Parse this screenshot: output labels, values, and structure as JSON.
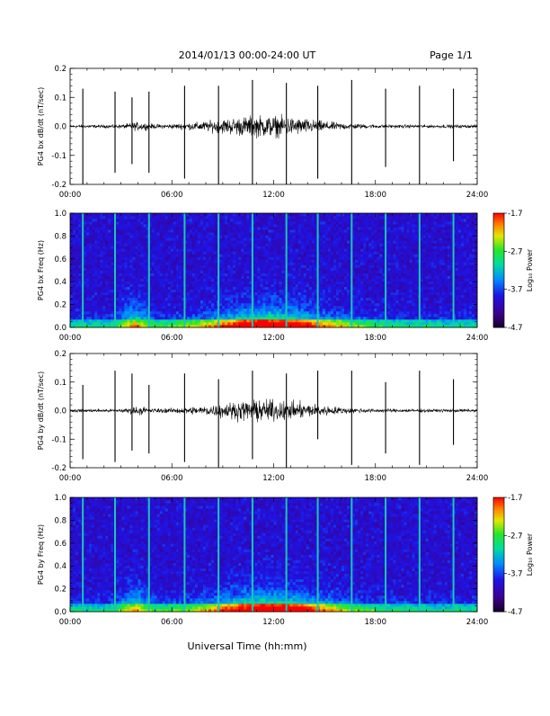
{
  "header": {
    "title": "2014/01/13  00:00-24:00 UT",
    "page": "Page 1/1"
  },
  "footer": {
    "xlabel": "Universal Time (hh:mm)"
  },
  "colorbar": {
    "ticks": [
      "-1.7",
      "-2.7",
      "-3.7",
      "-4.7"
    ],
    "tick_values": [
      -1.7,
      -2.7,
      -3.7,
      -4.7
    ],
    "label": "Log₁₀ Power",
    "range": [
      -4.7,
      -1.7
    ]
  },
  "chart_data": [
    {
      "type": "line",
      "ylabel": "PG4 bx dB/dt (nT/sec)",
      "xlim": [
        0,
        24
      ],
      "ylim": [
        -0.2,
        0.2
      ],
      "xticks": [
        "00:00",
        "06:00",
        "12:00",
        "18:00",
        "24:00"
      ],
      "yticks": [
        "0.2",
        "0.1",
        "0.0",
        "-0.1",
        "-0.2"
      ],
      "ytick_values": [
        0.2,
        0.1,
        0.0,
        -0.1,
        -0.2
      ],
      "spikes": [
        {
          "t": 0.75,
          "max": 0.13,
          "min": -0.21
        },
        {
          "t": 2.65,
          "max": 0.12,
          "min": -0.16
        },
        {
          "t": 3.65,
          "max": 0.1,
          "min": -0.13
        },
        {
          "t": 4.65,
          "max": 0.12,
          "min": -0.16
        },
        {
          "t": 6.75,
          "max": 0.14,
          "min": -0.18
        },
        {
          "t": 8.75,
          "max": 0.14,
          "min": -0.21
        },
        {
          "t": 10.75,
          "max": 0.16,
          "min": -0.21
        },
        {
          "t": 12.75,
          "max": 0.15,
          "min": -0.21
        },
        {
          "t": 14.6,
          "max": 0.14,
          "min": -0.18
        },
        {
          "t": 16.6,
          "max": 0.16,
          "min": -0.21
        },
        {
          "t": 18.6,
          "max": 0.13,
          "min": -0.14
        },
        {
          "t": 20.6,
          "max": 0.14,
          "min": -0.21
        },
        {
          "t": 22.6,
          "max": 0.13,
          "min": -0.12
        }
      ]
    },
    {
      "type": "heatmap",
      "ylabel": "PG4 bx Freq (Hz)",
      "xlim": [
        0,
        24
      ],
      "ylim": [
        0,
        1.0
      ],
      "xticks": [
        "00:00",
        "06:00",
        "12:00",
        "18:00",
        "24:00"
      ],
      "yticks": [
        "1.0",
        "0.8",
        "0.6",
        "0.4",
        "0.2",
        "0.0"
      ],
      "ytick_values": [
        1.0,
        0.8,
        0.6,
        0.4,
        0.2,
        0.0
      ],
      "color_range": [
        -4.7,
        -1.7
      ],
      "stripes": [
        0.75,
        2.65,
        4.65,
        6.75,
        8.75,
        10.75,
        12.75,
        14.6,
        16.6,
        18.6,
        20.6,
        22.6
      ]
    },
    {
      "type": "line",
      "ylabel": "PG4 by dB/dt (nT/sec)",
      "xlim": [
        0,
        24
      ],
      "ylim": [
        -0.2,
        0.2
      ],
      "xticks": [
        "00:00",
        "06:00",
        "12:00",
        "18:00",
        "24:00"
      ],
      "yticks": [
        "0.2",
        "0.1",
        "0.0",
        "-0.1",
        "-0.2"
      ],
      "ytick_values": [
        0.2,
        0.1,
        0.0,
        -0.1,
        -0.2
      ],
      "spikes": [
        {
          "t": 0.75,
          "max": 0.09,
          "min": -0.17
        },
        {
          "t": 2.65,
          "max": 0.14,
          "min": -0.18
        },
        {
          "t": 3.65,
          "max": 0.13,
          "min": -0.14
        },
        {
          "t": 4.65,
          "max": 0.09,
          "min": -0.15
        },
        {
          "t": 6.75,
          "max": 0.13,
          "min": -0.18
        },
        {
          "t": 8.75,
          "max": 0.11,
          "min": -0.2
        },
        {
          "t": 10.75,
          "max": 0.14,
          "min": -0.17
        },
        {
          "t": 12.75,
          "max": 0.13,
          "min": -0.2
        },
        {
          "t": 14.6,
          "max": 0.14,
          "min": -0.1
        },
        {
          "t": 16.6,
          "max": 0.14,
          "min": -0.19
        },
        {
          "t": 18.6,
          "max": 0.1,
          "min": -0.15
        },
        {
          "t": 20.6,
          "max": 0.14,
          "min": -0.19
        },
        {
          "t": 22.6,
          "max": 0.11,
          "min": -0.12
        }
      ]
    },
    {
      "type": "heatmap",
      "ylabel": "PG4 by Freq (Hz)",
      "xlim": [
        0,
        24
      ],
      "ylim": [
        0,
        1.0
      ],
      "xticks": [
        "00:00",
        "06:00",
        "12:00",
        "18:00",
        "24:00"
      ],
      "yticks": [
        "1.0",
        "0.8",
        "0.6",
        "0.4",
        "0.2",
        "0.0"
      ],
      "ytick_values": [
        1.0,
        0.8,
        0.6,
        0.4,
        0.2,
        0.0
      ],
      "color_range": [
        -4.7,
        -1.7
      ],
      "stripes": [
        0.75,
        2.65,
        4.65,
        6.75,
        8.75,
        10.75,
        12.75,
        14.6,
        16.6,
        18.6,
        20.6,
        22.6
      ]
    }
  ]
}
